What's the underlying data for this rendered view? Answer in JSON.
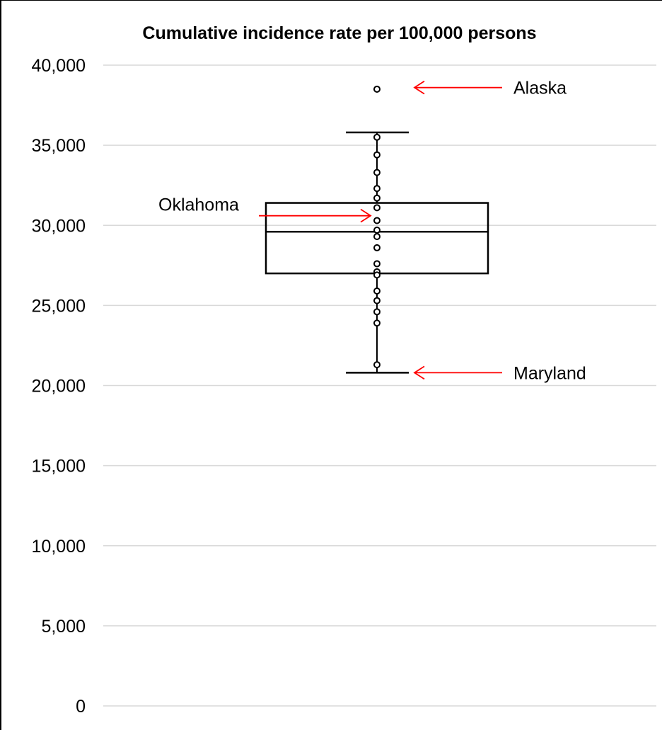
{
  "chart_data": {
    "type": "box",
    "title": "Cumulative incidence rate per 100,000 persons",
    "xlabel": "",
    "ylabel": "",
    "ylim": [
      0,
      40000
    ],
    "yticks": [
      0,
      5000,
      10000,
      15000,
      20000,
      25000,
      30000,
      35000,
      40000
    ],
    "ytick_labels": [
      "0",
      "5,000",
      "10,000",
      "15,000",
      "20,000",
      "25,000",
      "30,000",
      "35,000",
      "40,000"
    ],
    "grid": true,
    "box": {
      "whisker_low": 20800,
      "q1": 27000,
      "median": 29600,
      "q3": 31400,
      "whisker_high": 35800
    },
    "points": [
      38500,
      35500,
      34400,
      33300,
      32300,
      31700,
      31100,
      30300,
      29700,
      29300,
      28600,
      27600,
      27100,
      26900,
      25900,
      25300,
      24600,
      23900,
      21300
    ],
    "annotations": [
      {
        "label": "Alaska",
        "value": 38600,
        "side": "right"
      },
      {
        "label": "Oklahoma",
        "value": 30600,
        "side": "left"
      },
      {
        "label": "Maryland",
        "value": 20800,
        "side": "right"
      }
    ],
    "colors": {
      "box": "#000000",
      "arrow": "#ff0000",
      "grid": "#d9d9d9"
    }
  }
}
